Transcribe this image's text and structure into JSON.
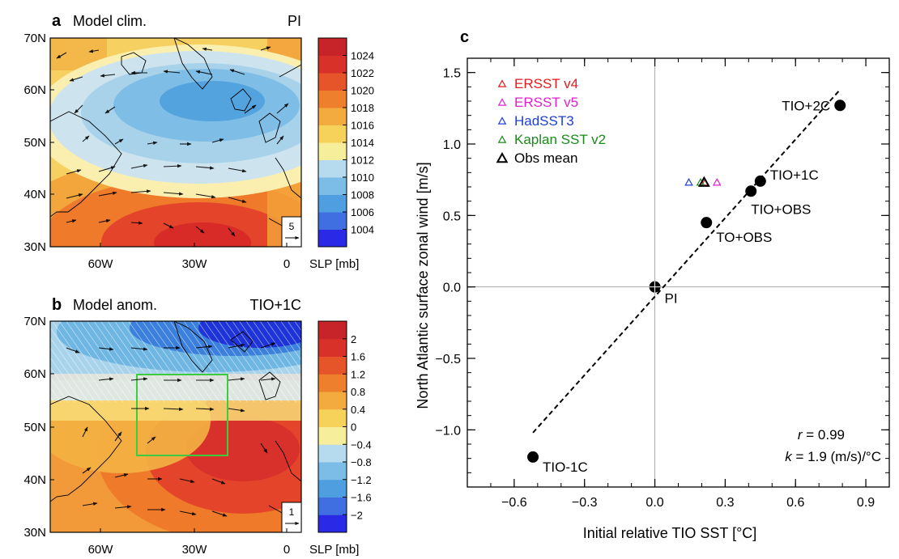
{
  "chart_data": [
    {
      "type": "heatmap",
      "panel_letter": "a",
      "title": "Model clim.",
      "case_label": "PI",
      "x_ticks": [
        "60W",
        "30W",
        "0"
      ],
      "y_ticks": [
        "30N",
        "40N",
        "50N",
        "60N",
        "70N"
      ],
      "colorbar": {
        "levels": [
          "1004",
          "1006",
          "1008",
          "1010",
          "1012",
          "1014",
          "1016",
          "1018",
          "1020",
          "1022",
          "1024"
        ],
        "label": "SLP [mb]"
      },
      "vector_reference": "5"
    },
    {
      "type": "heatmap",
      "panel_letter": "b",
      "title": "Model anom.",
      "case_label": "TIO+1C",
      "x_ticks": [
        "60W",
        "30W",
        "0"
      ],
      "y_ticks": [
        "30N",
        "40N",
        "50N",
        "60N",
        "70N"
      ],
      "colorbar": {
        "levels": [
          "−2",
          "−1.6",
          "−1.2",
          "−0.8",
          "−0.4",
          "0",
          "0.4",
          "0.8",
          "1.2",
          "1.6",
          "2"
        ],
        "label": "SLP [mb]"
      },
      "vector_reference": "1",
      "box_color": "#3dcc3d"
    },
    {
      "type": "scatter",
      "panel_letter": "c",
      "xlabel": "Initial relative TIO SST [°C]",
      "ylabel": "North Atlantic surface zonal wind [m/s]",
      "xlim": [
        -0.8,
        1.0
      ],
      "ylim": [
        -1.4,
        1.6
      ],
      "x_ticks": [
        -0.6,
        -0.3,
        0.0,
        0.3,
        0.6,
        0.9
      ],
      "x_tick_labels": [
        "−0.6",
        "−0.3",
        "0.0",
        "0.3",
        "0.6",
        "0.9"
      ],
      "y_ticks": [
        -1.0,
        -0.5,
        0.0,
        0.5,
        1.0,
        1.5
      ],
      "y_tick_labels": [
        "−1.0",
        "−0.5",
        "0.0",
        "0.5",
        "1.0",
        "1.5"
      ],
      "model_points": [
        {
          "label": "TIO-1C",
          "x": -0.52,
          "y": -1.19
        },
        {
          "label": "PI",
          "x": 0.0,
          "y": 0.0
        },
        {
          "label": "TO+OBS",
          "x": 0.22,
          "y": 0.45
        },
        {
          "label": "TIO+OBS",
          "x": 0.41,
          "y": 0.67
        },
        {
          "label": "TIO+1C",
          "x": 0.45,
          "y": 0.74
        },
        {
          "label": "TIO+2C",
          "x": 0.79,
          "y": 1.27
        }
      ],
      "obs_points": [
        {
          "name": "ERSST v4",
          "color": "#e41a1c",
          "x": 0.215,
          "y": 0.73
        },
        {
          "name": "ERSST v5",
          "color": "#e020d0",
          "x": 0.265,
          "y": 0.73
        },
        {
          "name": "HadSST3",
          "color": "#1f3fd6",
          "x": 0.145,
          "y": 0.73
        },
        {
          "name": "Kaplan SST v2",
          "color": "#1a8a1a",
          "x": 0.195,
          "y": 0.73
        },
        {
          "name": "Obs mean",
          "color": "#000000",
          "x": 0.21,
          "y": 0.73
        }
      ],
      "fit_line": {
        "x": [
          -0.52,
          0.79
        ],
        "y": [
          -1.02,
          1.38
        ]
      },
      "stats": {
        "r_symbol": "r",
        "r_text": " = 0.99",
        "k_symbol": "k",
        "k_text": " = 1.9 (m/s)/°C"
      }
    }
  ]
}
